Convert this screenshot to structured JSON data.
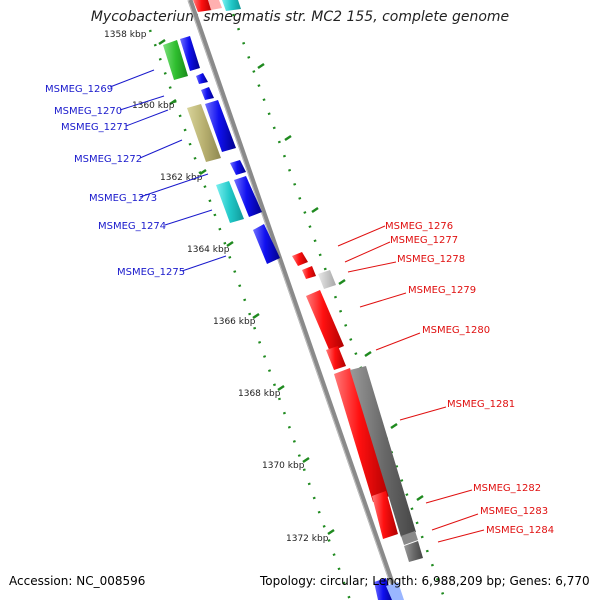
{
  "title": "Mycobacterium smegmatis str. MC2 155, complete genome",
  "footer": {
    "accession": "Accession: NC_008596",
    "summary": "Topology: circular; Length: 6,988,209 bp; Genes: 6,770"
  },
  "scale_labels": [
    "1358 kbp",
    "1360 kbp",
    "1362 kbp",
    "1364 kbp",
    "1366 kbp",
    "1368 kbp",
    "1370 kbp",
    "1372 kbp"
  ],
  "genes_left": [
    "MSMEG_1269",
    "MSMEG_1270",
    "MSMEG_1271",
    "MSMEG_1272",
    "MSMEG_1273",
    "MSMEG_1274",
    "MSMEG_1275"
  ],
  "genes_right": [
    "MSMEG_1276",
    "MSMEG_1277",
    "MSMEG_1278",
    "MSMEG_1279",
    "MSMEG_1280",
    "MSMEG_1281",
    "MSMEG_1282",
    "MSMEG_1283",
    "MSMEG_1284"
  ],
  "colors": {
    "backbone": "#8a8a8a",
    "forward_label": "#1a1acc",
    "reverse_label": "#e01010",
    "scale_tick": "#2a8a2a"
  }
}
